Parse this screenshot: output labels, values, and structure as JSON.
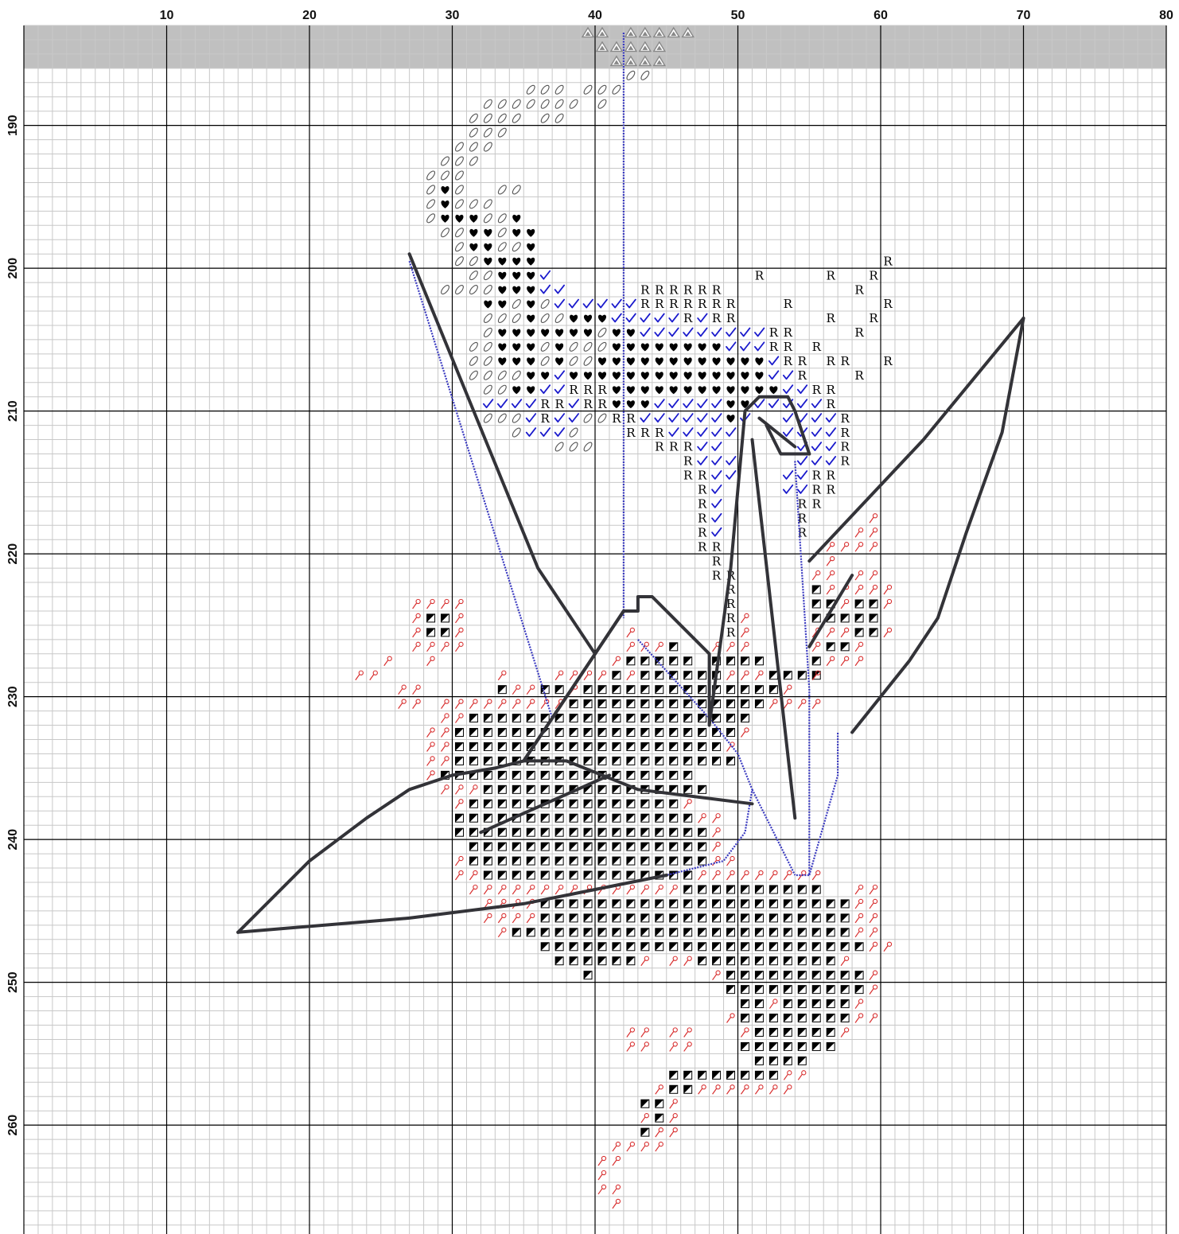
{
  "pattern": {
    "column_axis": {
      "first_column": 1,
      "last_column": 80,
      "labels": [
        "10",
        "20",
        "30",
        "40",
        "50",
        "60",
        "70",
        "80"
      ],
      "label_columns": [
        10,
        20,
        30,
        40,
        50,
        60,
        70,
        80
      ]
    },
    "row_axis": {
      "first_row": 184,
      "last_row": 270,
      "labels": [
        "190",
        "200",
        "210",
        "220",
        "230",
        "240",
        "250",
        "260"
      ],
      "label_rows": [
        190,
        200,
        210,
        220,
        230,
        240,
        250,
        260
      ]
    },
    "shaded_header_rows": [
      184,
      186
    ],
    "colors": {
      "grid_minor": "#c8c8c8",
      "grid_major": "#000000",
      "header_shade": "#c0c0c0",
      "backstitch_dark": "#333338",
      "backstitch_blue": "#3a3ac0",
      "symbol_red": "#d83030",
      "symbol_blue": "#1a1acc",
      "symbol_black": "#000000",
      "symbol_gray": "#888888"
    },
    "symbol_legend": [
      {
        "key": "S",
        "icon": "oval-slash-icon",
        "color": "#555555"
      },
      {
        "key": "H",
        "icon": "heart-icon",
        "color": "#000000"
      },
      {
        "key": "C",
        "icon": "checkmark-icon",
        "color": "#1a1acc"
      },
      {
        "key": "R",
        "icon": "letter-r",
        "text": "R",
        "color": "#000000"
      },
      {
        "key": "B",
        "icon": "half-filled-square-icon",
        "color": "#000000"
      },
      {
        "key": "P",
        "icon": "pin-icon",
        "color": "#d83030"
      },
      {
        "key": "T",
        "icon": "triangle-icon",
        "color": "#888888"
      }
    ],
    "symbol_blocks": [
      {
        "row": 184,
        "start_col": 40,
        "symbols": "TT.TTTTT"
      },
      {
        "row": 185,
        "start_col": 41,
        "symbols": "TTTTT"
      },
      {
        "row": 186,
        "start_col": 42,
        "symbols": "TTTT"
      },
      {
        "row": 187,
        "start_col": 43,
        "symbols": "SS"
      },
      {
        "row": 188,
        "start_col": 36,
        "symbols": "SSS.SSS"
      },
      {
        "row": 189,
        "start_col": 33,
        "symbols": "SSSSSSS.S"
      },
      {
        "row": 190,
        "start_col": 32,
        "symbols": "SSSS.SS"
      },
      {
        "row": 191,
        "start_col": 32,
        "symbols": "SSS"
      },
      {
        "row": 192,
        "start_col": 31,
        "symbols": "SSS"
      },
      {
        "row": 193,
        "start_col": 30,
        "symbols": "SSS"
      },
      {
        "row": 194,
        "start_col": 29,
        "symbols": "SSS"
      },
      {
        "row": 195,
        "start_col": 29,
        "symbols": "SHS..SS"
      },
      {
        "row": 196,
        "start_col": 29,
        "symbols": "SHSSS"
      },
      {
        "row": 197,
        "start_col": 29,
        "symbols": "SHHHSSH"
      },
      {
        "row": 198,
        "start_col": 30,
        "symbols": "SSHHSHH"
      },
      {
        "row": 199,
        "start_col": 31,
        "symbols": "SHHSSH"
      },
      {
        "row": 200,
        "start_col": 31,
        "symbols": "SSHHHH"
      },
      {
        "row": 200,
        "start_col": 61,
        "symbols": "R"
      },
      {
        "row": 201,
        "start_col": 32,
        "symbols": "SSHHHC"
      },
      {
        "row": 201,
        "start_col": 52,
        "symbols": "R"
      },
      {
        "row": 201,
        "start_col": 57,
        "symbols": "R"
      },
      {
        "row": 201,
        "start_col": 60,
        "symbols": "R"
      },
      {
        "row": 202,
        "start_col": 30,
        "symbols": "SSSSHHHCC"
      },
      {
        "row": 202,
        "start_col": 44,
        "symbols": "RRRRRR"
      },
      {
        "row": 202,
        "start_col": 59,
        "symbols": "R"
      },
      {
        "row": 203,
        "start_col": 33,
        "symbols": "HHSHSCCCCCCRRRRRRR"
      },
      {
        "row": 203,
        "start_col": 54,
        "symbols": "R"
      },
      {
        "row": 203,
        "start_col": 61,
        "symbols": "R"
      },
      {
        "row": 204,
        "start_col": 33,
        "symbols": "SSSHSSHHHCCCCCRCRR"
      },
      {
        "row": 204,
        "start_col": 57,
        "symbols": "R"
      },
      {
        "row": 204,
        "start_col": 60,
        "symbols": "R"
      },
      {
        "row": 205,
        "start_col": 33,
        "symbols": "SHHHHHHHSHHCCCCCCCCCRR"
      },
      {
        "row": 205,
        "start_col": 59,
        "symbols": "R"
      },
      {
        "row": 206,
        "start_col": 32,
        "symbols": "SSHHHSHSSSHHHHHHHHCCCRR"
      },
      {
        "row": 206,
        "start_col": 56,
        "symbols": "R"
      },
      {
        "row": 207,
        "start_col": 32,
        "symbols": "SSHHHSHSSHHHHHHHHHHHHCRR"
      },
      {
        "row": 207,
        "start_col": 57,
        "symbols": "RR"
      },
      {
        "row": 207,
        "start_col": 61,
        "symbols": "R"
      },
      {
        "row": 208,
        "start_col": 32,
        "symbols": "SSSSHHCHHHHHHHHHHHHHHCCR"
      },
      {
        "row": 208,
        "start_col": 59,
        "symbols": "R"
      },
      {
        "row": 209,
        "start_col": 33,
        "symbols": "SSHHCCRRRHHHHHHHHHHHHCCRR"
      },
      {
        "row": 210,
        "start_col": 33,
        "symbols": "CCCCRRCRRHHHCCCCCHHCCCCCR"
      },
      {
        "row": 211,
        "start_col": 33,
        "symbols": "SSSCRCCSSRRCCCCCCHC"
      },
      {
        "row": 211,
        "start_col": 54,
        "symbols": "CCCCR"
      },
      {
        "row": 212,
        "start_col": 35,
        "symbols": "SCCCS"
      },
      {
        "row": 212,
        "start_col": 43,
        "symbols": "RRRCCCCC"
      },
      {
        "row": 212,
        "start_col": 54,
        "symbols": "CCCCR"
      },
      {
        "row": 213,
        "start_col": 38,
        "symbols": "SSS"
      },
      {
        "row": 213,
        "start_col": 45,
        "symbols": "RRRCC"
      },
      {
        "row": 213,
        "start_col": 55,
        "symbols": "CCCR"
      },
      {
        "row": 214,
        "start_col": 47,
        "symbols": "RCCC"
      },
      {
        "row": 214,
        "start_col": 55,
        "symbols": "CCCR"
      },
      {
        "row": 215,
        "start_col": 47,
        "symbols": "RRCC"
      },
      {
        "row": 215,
        "start_col": 54,
        "symbols": "CCRR"
      },
      {
        "row": 216,
        "start_col": 48,
        "symbols": "RC"
      },
      {
        "row": 216,
        "start_col": 54,
        "symbols": "CCRR"
      },
      {
        "row": 217,
        "start_col": 48,
        "symbols": "RC"
      },
      {
        "row": 217,
        "start_col": 55,
        "symbols": "RR"
      },
      {
        "row": 218,
        "start_col": 48,
        "symbols": "RC"
      },
      {
        "row": 218,
        "start_col": 55,
        "symbols": "R"
      },
      {
        "row": 218,
        "start_col": 60,
        "symbols": "P"
      },
      {
        "row": 219,
        "start_col": 48,
        "symbols": "RC"
      },
      {
        "row": 219,
        "start_col": 55,
        "symbols": "R"
      },
      {
        "row": 219,
        "start_col": 59,
        "symbols": "PP"
      },
      {
        "row": 220,
        "start_col": 48,
        "symbols": "RR"
      },
      {
        "row": 220,
        "start_col": 57,
        "symbols": "PPPP"
      },
      {
        "row": 221,
        "start_col": 49,
        "symbols": "R"
      },
      {
        "row": 221,
        "start_col": 57,
        "symbols": "P"
      },
      {
        "row": 222,
        "start_col": 49,
        "symbols": "RR"
      },
      {
        "row": 222,
        "start_col": 56,
        "symbols": "PP.PP"
      },
      {
        "row": 223,
        "start_col": 50,
        "symbols": "R"
      },
      {
        "row": 223,
        "start_col": 56,
        "symbols": "BPPPPP"
      },
      {
        "row": 224,
        "start_col": 28,
        "symbols": "PPPP"
      },
      {
        "row": 224,
        "start_col": 50,
        "symbols": "R"
      },
      {
        "row": 224,
        "start_col": 56,
        "symbols": "BBPBBP"
      },
      {
        "row": 225,
        "start_col": 28,
        "symbols": "PBBP"
      },
      {
        "row": 225,
        "start_col": 50,
        "symbols": "RP"
      },
      {
        "row": 225,
        "start_col": 56,
        "symbols": "BBBBB"
      },
      {
        "row": 226,
        "start_col": 28,
        "symbols": "PBBP"
      },
      {
        "row": 226,
        "start_col": 43,
        "symbols": "P"
      },
      {
        "row": 226,
        "start_col": 50,
        "symbols": "RP"
      },
      {
        "row": 226,
        "start_col": 56,
        "symbols": "PPPBBP"
      },
      {
        "row": 227,
        "start_col": 28,
        "symbols": "PPPP"
      },
      {
        "row": 227,
        "start_col": 43,
        "symbols": "PPPB"
      },
      {
        "row": 227,
        "start_col": 49,
        "symbols": "PPP"
      },
      {
        "row": 227,
        "start_col": 56,
        "symbols": "PBBP"
      },
      {
        "row": 228,
        "start_col": 26,
        "symbols": "P"
      },
      {
        "row": 228,
        "start_col": 29,
        "symbols": "P"
      },
      {
        "row": 228,
        "start_col": 42,
        "symbols": "PBBBBB"
      },
      {
        "row": 228,
        "start_col": 49,
        "symbols": "BBBB"
      },
      {
        "row": 228,
        "start_col": 56,
        "symbols": "BPPP"
      },
      {
        "row": 229,
        "start_col": 24,
        "symbols": "PP"
      },
      {
        "row": 229,
        "start_col": 34,
        "symbols": "P"
      },
      {
        "row": 229,
        "start_col": 38,
        "symbols": "PPPPBPBBBBBBPPPBBBB"
      },
      {
        "row": 229,
        "start_col": 56,
        "symbols": "P"
      },
      {
        "row": 230,
        "start_col": 27,
        "symbols": "PP"
      },
      {
        "row": 230,
        "start_col": 34,
        "symbols": "BPPBBPBBBBBBBBBBBBBBP"
      },
      {
        "row": 231,
        "start_col": 27,
        "symbols": "PP.PPPPPPPPPBBBBBBBBBBBBBBPPPP"
      },
      {
        "row": 232,
        "start_col": 30,
        "symbols": "PPBBBBBBBBBBBBBBBBBBBB"
      },
      {
        "row": 233,
        "start_col": 29,
        "symbols": "PPBBBBBBBBBBBBBBBBBBBBP"
      },
      {
        "row": 234,
        "start_col": 29,
        "symbols": "PPBBBBBBBBBBBBBBBBBBBP"
      },
      {
        "row": 235,
        "start_col": 29,
        "symbols": "PPBBBBBBBBBBBBBBBBBBBB"
      },
      {
        "row": 236,
        "start_col": 29,
        "symbols": "PBBBBBBBBBBBBBBBBBB"
      },
      {
        "row": 237,
        "start_col": 30,
        "symbols": "PPPBBBBBBBBBBBBBBBB"
      },
      {
        "row": 238,
        "start_col": 31,
        "symbols": "PBBBBBBBBBBBBBBBP"
      },
      {
        "row": 239,
        "start_col": 31,
        "symbols": "BBBBBBBBBBBBBBBBBPP"
      },
      {
        "row": 240,
        "start_col": 31,
        "symbols": "BBBBBBBBBBBBBBBBBBP"
      },
      {
        "row": 241,
        "start_col": 32,
        "symbols": "BBBBBBBBBBBBBBBBBP"
      },
      {
        "row": 242,
        "start_col": 31,
        "symbols": "PBBBBBBBBBBBBBBBBBPP"
      },
      {
        "row": 243,
        "start_col": 31,
        "symbols": "PPBBBBBBBBBBBBBBBPPPPPPPPP"
      },
      {
        "row": 244,
        "start_col": 32,
        "symbols": "PPPPPPPPPPPPPPPBBBBBBBBBB"
      },
      {
        "row": 244,
        "start_col": 59,
        "symbols": "PP"
      },
      {
        "row": 245,
        "start_col": 33,
        "symbols": "PPPPBBBBBBBBBBBBBBBBBBBBBB"
      },
      {
        "row": 245,
        "start_col": 59,
        "symbols": "PP"
      },
      {
        "row": 246,
        "start_col": 33,
        "symbols": "PPPPBBBBBBBBBBBBBBBBBBBBBBPP"
      },
      {
        "row": 247,
        "start_col": 34,
        "symbols": "PBBBBBBBBBBBBBBBBBBBBBBBBPP"
      },
      {
        "row": 248,
        "start_col": 37,
        "symbols": "BBBBBBBBBBBBBBBBBBBBBBBPP"
      },
      {
        "row": 249,
        "start_col": 38,
        "symbols": "BBBBBBP.PPBBBBBBBBBBP"
      },
      {
        "row": 250,
        "start_col": 40,
        "symbols": "B"
      },
      {
        "row": 250,
        "start_col": 49,
        "symbols": "PBBBBBBBBBBP"
      },
      {
        "row": 251,
        "start_col": 50,
        "symbols": "BBBBBBBBBBP"
      },
      {
        "row": 252,
        "start_col": 51,
        "symbols": "BBPBBBBBP"
      },
      {
        "row": 253,
        "start_col": 50,
        "symbols": "PBBBBBBBBPP"
      },
      {
        "row": 254,
        "start_col": 43,
        "symbols": "PP"
      },
      {
        "row": 254,
        "start_col": 46,
        "symbols": "PP"
      },
      {
        "row": 254,
        "start_col": 51,
        "symbols": "PBBBBBBP"
      },
      {
        "row": 255,
        "start_col": 43,
        "symbols": "PP"
      },
      {
        "row": 255,
        "start_col": 46,
        "symbols": "PP"
      },
      {
        "row": 255,
        "start_col": 51,
        "symbols": "BBBBBBB"
      },
      {
        "row": 256,
        "start_col": 52,
        "symbols": "BBBB"
      },
      {
        "row": 257,
        "start_col": 46,
        "symbols": "BBBBBBBBPP"
      },
      {
        "row": 258,
        "start_col": 45,
        "symbols": "PBBPPPPPPP"
      },
      {
        "row": 259,
        "start_col": 44,
        "symbols": "BBP"
      },
      {
        "row": 260,
        "start_col": 44,
        "symbols": "PBP"
      },
      {
        "row": 261,
        "start_col": 44,
        "symbols": "BPP"
      },
      {
        "row": 262,
        "start_col": 42,
        "symbols": "PPPP"
      },
      {
        "row": 263,
        "start_col": 41,
        "symbols": "PP"
      },
      {
        "row": 264,
        "start_col": 41,
        "symbols": "P"
      },
      {
        "row": 265,
        "start_col": 41,
        "symbols": "PP"
      },
      {
        "row": 266,
        "start_col": 42,
        "symbols": "P"
      }
    ],
    "backstitch_dark_lines": [
      [
        [
          27,
          199.5
        ],
        [
          36,
          221.5
        ],
        [
          40,
          227.5
        ],
        [
          42,
          224.5
        ],
        [
          43,
          224.5
        ],
        [
          43,
          223.5
        ],
        [
          44,
          223.5
        ],
        [
          48,
          227.5
        ],
        [
          48,
          232.5
        ],
        [
          49.5,
          221.5
        ],
        [
          50.5,
          210.5
        ],
        [
          51.5,
          209.5
        ],
        [
          53.5,
          209.5
        ],
        [
          54,
          210.5
        ],
        [
          55,
          213.5
        ],
        [
          54,
          210.5
        ]
      ],
      [
        [
          51.5,
          211
        ],
        [
          54,
          213
        ]
      ],
      [
        [
          52,
          211.5
        ],
        [
          53,
          213.5
        ],
        [
          55,
          213.5
        ]
      ],
      [
        [
          51,
          212.5
        ],
        [
          54,
          239
        ]
      ],
      [
        [
          55,
          221
        ],
        [
          63,
          212.5
        ],
        [
          70,
          204
        ]
      ],
      [
        [
          70,
          204
        ],
        [
          68.5,
          212
        ],
        [
          66,
          219
        ],
        [
          64,
          225
        ],
        [
          62,
          228
        ],
        [
          58,
          233
        ]
      ],
      [
        [
          55,
          227
        ],
        [
          58,
          222
        ]
      ],
      [
        [
          40,
          227.5
        ],
        [
          35,
          235
        ],
        [
          36,
          235
        ],
        [
          38,
          235
        ],
        [
          43,
          237
        ],
        [
          51,
          238
        ]
      ],
      [
        [
          42,
          224.5
        ],
        [
          35,
          235
        ],
        [
          33,
          235.5
        ],
        [
          30,
          236
        ],
        [
          27,
          237
        ],
        [
          24,
          239
        ],
        [
          20,
          242
        ],
        [
          15,
          247
        ]
      ],
      [
        [
          15,
          247
        ],
        [
          27,
          246
        ],
        [
          35,
          245
        ],
        [
          40,
          244
        ],
        [
          45,
          243
        ]
      ],
      [
        [
          32,
          240
        ],
        [
          41,
          236
        ]
      ]
    ],
    "backstitch_blue_lines": [
      [
        [
          42,
          184
        ],
        [
          42,
          225
        ]
      ],
      [
        [
          27,
          200
        ],
        [
          37,
          232
        ]
      ],
      [
        [
          43,
          226.5
        ],
        [
          48,
          232
        ],
        [
          50,
          234.5
        ],
        [
          51,
          237
        ],
        [
          50.5,
          240
        ],
        [
          49,
          242
        ],
        [
          45,
          243
        ]
      ],
      [
        [
          54,
          214
        ],
        [
          54.5,
          222
        ],
        [
          55,
          230
        ],
        [
          55,
          237
        ],
        [
          55,
          243
        ],
        [
          54,
          243
        ]
      ],
      [
        [
          55,
          243
        ],
        [
          57,
          236
        ],
        [
          57,
          233
        ]
      ],
      [
        [
          51,
          237
        ],
        [
          52,
          239
        ],
        [
          53,
          241
        ],
        [
          54,
          243
        ]
      ]
    ]
  }
}
